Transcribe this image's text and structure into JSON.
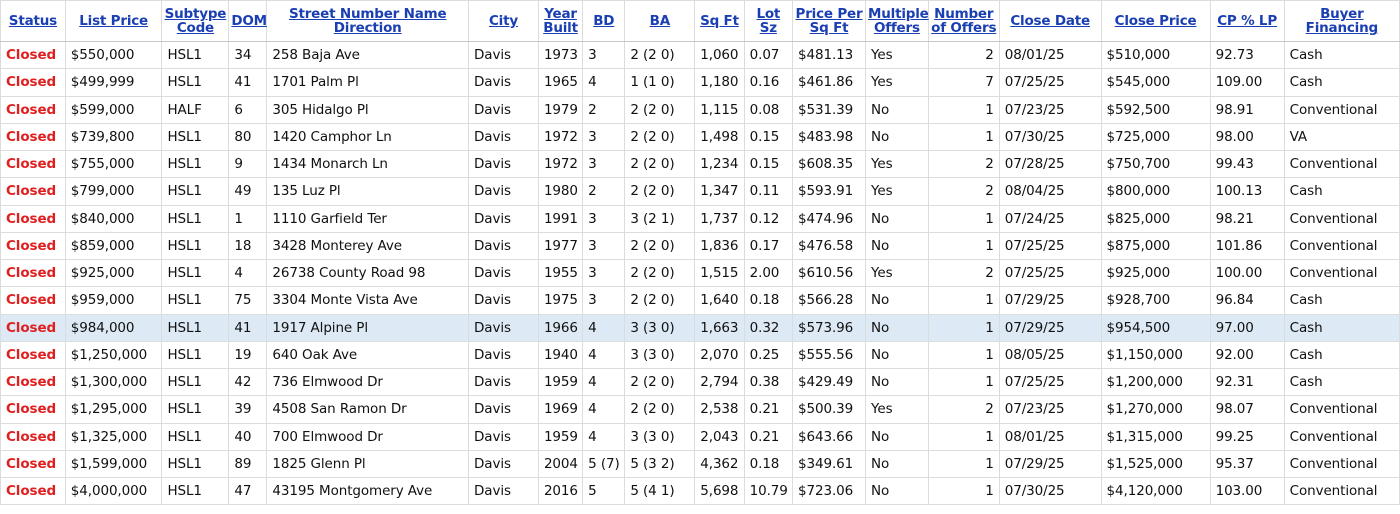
{
  "table": {
    "columns": [
      {
        "label": "Status",
        "align": "left"
      },
      {
        "label": "List Price",
        "align": "left"
      },
      {
        "label": "Subtype Code",
        "align": "left"
      },
      {
        "label": "DOM",
        "align": "left"
      },
      {
        "label": "Street Number Name Direction",
        "align": "left"
      },
      {
        "label": "City",
        "align": "left"
      },
      {
        "label": "Year Built",
        "align": "left"
      },
      {
        "label": "BD",
        "align": "left"
      },
      {
        "label": "BA",
        "align": "left"
      },
      {
        "label": "Sq Ft",
        "align": "left"
      },
      {
        "label": "Lot Sz",
        "align": "left"
      },
      {
        "label": "Price Per Sq Ft",
        "align": "left"
      },
      {
        "label": "Multiple Offers",
        "align": "left"
      },
      {
        "label": "Number of Offers",
        "align": "right"
      },
      {
        "label": "Close Date",
        "align": "left"
      },
      {
        "label": "Close Price",
        "align": "left"
      },
      {
        "label": "CP % LP",
        "align": "left"
      },
      {
        "label": "Buyer Financing",
        "align": "left"
      }
    ],
    "selected_row": 10,
    "status_color": "#e02020",
    "header_color": "#1a3fb3",
    "selected_row_color": "#dde9f4",
    "rows": [
      [
        "Closed",
        "$550,000",
        "HSL1",
        "34",
        "258 Baja Ave",
        "Davis",
        "1973",
        "3",
        "2 (2 0)",
        "1,060",
        "0.07",
        "$481.13",
        "Yes",
        "2",
        "08/01/25",
        "$510,000",
        "92.73",
        "Cash"
      ],
      [
        "Closed",
        "$499,999",
        "HSL1",
        "41",
        "1701 Palm Pl",
        "Davis",
        "1965",
        "4",
        "1 (1 0)",
        "1,180",
        "0.16",
        "$461.86",
        "Yes",
        "7",
        "07/25/25",
        "$545,000",
        "109.00",
        "Cash"
      ],
      [
        "Closed",
        "$599,000",
        "HALF",
        "6",
        "305 Hidalgo Pl",
        "Davis",
        "1979",
        "2",
        "2 (2 0)",
        "1,115",
        "0.08",
        "$531.39",
        "No",
        "1",
        "07/23/25",
        "$592,500",
        "98.91",
        "Conventional"
      ],
      [
        "Closed",
        "$739,800",
        "HSL1",
        "80",
        "1420 Camphor Ln",
        "Davis",
        "1972",
        "3",
        "2 (2 0)",
        "1,498",
        "0.15",
        "$483.98",
        "No",
        "1",
        "07/30/25",
        "$725,000",
        "98.00",
        "VA"
      ],
      [
        "Closed",
        "$755,000",
        "HSL1",
        "9",
        "1434 Monarch Ln",
        "Davis",
        "1972",
        "3",
        "2 (2 0)",
        "1,234",
        "0.15",
        "$608.35",
        "Yes",
        "2",
        "07/28/25",
        "$750,700",
        "99.43",
        "Conventional"
      ],
      [
        "Closed",
        "$799,000",
        "HSL1",
        "49",
        "135 Luz Pl",
        "Davis",
        "1980",
        "2",
        "2 (2 0)",
        "1,347",
        "0.11",
        "$593.91",
        "Yes",
        "2",
        "08/04/25",
        "$800,000",
        "100.13",
        "Cash"
      ],
      [
        "Closed",
        "$840,000",
        "HSL1",
        "1",
        "1110 Garfield Ter",
        "Davis",
        "1991",
        "3",
        "3 (2 1)",
        "1,737",
        "0.12",
        "$474.96",
        "No",
        "1",
        "07/24/25",
        "$825,000",
        "98.21",
        "Conventional"
      ],
      [
        "Closed",
        "$859,000",
        "HSL1",
        "18",
        "3428 Monterey Ave",
        "Davis",
        "1977",
        "3",
        "2 (2 0)",
        "1,836",
        "0.17",
        "$476.58",
        "No",
        "1",
        "07/25/25",
        "$875,000",
        "101.86",
        "Conventional"
      ],
      [
        "Closed",
        "$925,000",
        "HSL1",
        "4",
        "26738 County Road 98",
        "Davis",
        "1955",
        "3",
        "2 (2 0)",
        "1,515",
        "2.00",
        "$610.56",
        "Yes",
        "2",
        "07/25/25",
        "$925,000",
        "100.00",
        "Conventional"
      ],
      [
        "Closed",
        "$959,000",
        "HSL1",
        "75",
        "3304 Monte Vista Ave",
        "Davis",
        "1975",
        "3",
        "2 (2 0)",
        "1,640",
        "0.18",
        "$566.28",
        "No",
        "1",
        "07/29/25",
        "$928,700",
        "96.84",
        "Cash"
      ],
      [
        "Closed",
        "$984,000",
        "HSL1",
        "41",
        "1917 Alpine Pl",
        "Davis",
        "1966",
        "4",
        "3 (3 0)",
        "1,663",
        "0.32",
        "$573.96",
        "No",
        "1",
        "07/29/25",
        "$954,500",
        "97.00",
        "Cash"
      ],
      [
        "Closed",
        "$1,250,000",
        "HSL1",
        "19",
        "640 Oak Ave",
        "Davis",
        "1940",
        "4",
        "3 (3 0)",
        "2,070",
        "0.25",
        "$555.56",
        "No",
        "1",
        "08/05/25",
        "$1,150,000",
        "92.00",
        "Cash"
      ],
      [
        "Closed",
        "$1,300,000",
        "HSL1",
        "42",
        "736 Elmwood Dr",
        "Davis",
        "1959",
        "4",
        "2 (2 0)",
        "2,794",
        "0.38",
        "$429.49",
        "No",
        "1",
        "07/25/25",
        "$1,200,000",
        "92.31",
        "Cash"
      ],
      [
        "Closed",
        "$1,295,000",
        "HSL1",
        "39",
        "4508 San Ramon Dr",
        "Davis",
        "1969",
        "4",
        "2 (2 0)",
        "2,538",
        "0.21",
        "$500.39",
        "Yes",
        "2",
        "07/23/25",
        "$1,270,000",
        "98.07",
        "Conventional"
      ],
      [
        "Closed",
        "$1,325,000",
        "HSL1",
        "40",
        "700 Elmwood Dr",
        "Davis",
        "1959",
        "4",
        "3 (3 0)",
        "2,043",
        "0.21",
        "$643.66",
        "No",
        "1",
        "08/01/25",
        "$1,315,000",
        "99.25",
        "Conventional"
      ],
      [
        "Closed",
        "$1,599,000",
        "HSL1",
        "89",
        "1825 Glenn Pl",
        "Davis",
        "2004",
        "5 (7)",
        "5 (3 2)",
        "4,362",
        "0.18",
        "$349.61",
        "No",
        "1",
        "07/29/25",
        "$1,525,000",
        "95.37",
        "Conventional"
      ],
      [
        "Closed",
        "$4,000,000",
        "HSL1",
        "47",
        "43195 Montgomery Ave",
        "Davis",
        "2016",
        "5",
        "5 (4 1)",
        "5,698",
        "10.79",
        "$723.06",
        "No",
        "1",
        "07/30/25",
        "$4,120,000",
        "103.00",
        "Conventional"
      ]
    ]
  }
}
